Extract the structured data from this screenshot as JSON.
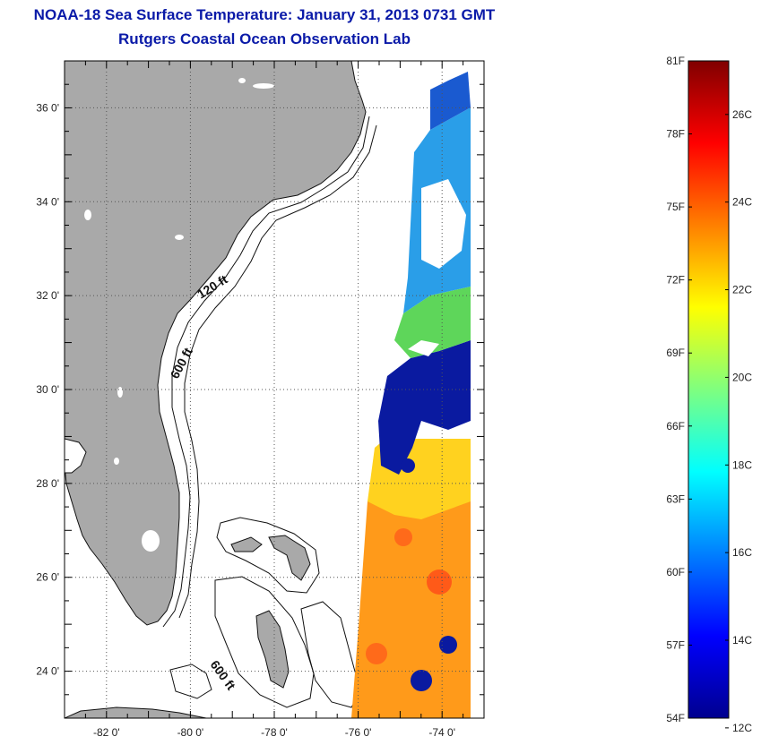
{
  "title": "NOAA-18 Sea Surface Temperature:  January 31, 2013 0731 GMT",
  "subtitle": "Rutgers Coastal Ocean Observation Lab",
  "map": {
    "lon_range": [
      -83,
      -73
    ],
    "lat_range": [
      23,
      37
    ],
    "x_ticks": [
      {
        "lon": -82,
        "label": "-82 0'"
      },
      {
        "lon": -80,
        "label": "-80 0'"
      },
      {
        "lon": -78,
        "label": "-78 0'"
      },
      {
        "lon": -76,
        "label": "-76 0'"
      },
      {
        "lon": -74,
        "label": "-74 0'"
      }
    ],
    "y_ticks": [
      {
        "lat": 24,
        "label": "24 0'"
      },
      {
        "lat": 26,
        "label": "26 0'"
      },
      {
        "lat": 28,
        "label": "28 0'"
      },
      {
        "lat": 30,
        "label": "30 0'"
      },
      {
        "lat": 32,
        "label": "32 0'"
      },
      {
        "lat": 34,
        "label": "34 0'"
      },
      {
        "lat": 36,
        "label": "36 0'"
      }
    ],
    "contour_labels": [
      "120 ft",
      "600 ft",
      "600 ft"
    ],
    "colors": {
      "land": "#a9a9a9",
      "sea": "#ffffff",
      "grid": "#555555"
    }
  },
  "colorbar": {
    "fahrenheit": [
      {
        "value": 81,
        "label": "81F"
      },
      {
        "value": 78,
        "label": "78F"
      },
      {
        "value": 75,
        "label": "75F"
      },
      {
        "value": 72,
        "label": "72F"
      },
      {
        "value": 69,
        "label": "69F"
      },
      {
        "value": 66,
        "label": "66F"
      },
      {
        "value": 63,
        "label": "63F"
      },
      {
        "value": 60,
        "label": "60F"
      },
      {
        "value": 57,
        "label": "57F"
      },
      {
        "value": 54,
        "label": "54F"
      }
    ],
    "celsius": [
      {
        "value": 26,
        "label": "26C"
      },
      {
        "value": 24,
        "label": "24C"
      },
      {
        "value": 22,
        "label": "22C"
      },
      {
        "value": 20,
        "label": "20C"
      },
      {
        "value": 18,
        "label": "18C"
      },
      {
        "value": 16,
        "label": "16C"
      },
      {
        "value": 14,
        "label": "14C"
      },
      {
        "value": 12,
        "label": "12C"
      }
    ]
  }
}
